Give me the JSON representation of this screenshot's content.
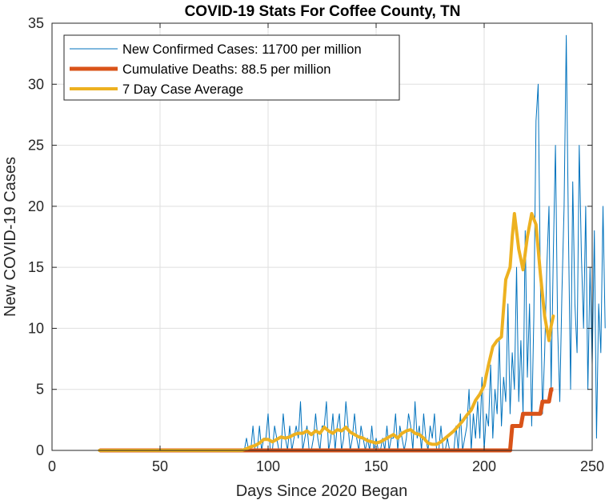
{
  "chart_data": {
    "type": "line",
    "title": "COVID-19 Stats For Coffee County, TN",
    "xlabel": "Days Since 2020 Began",
    "ylabel": "New COVID-19 Cases",
    "xlim": [
      0,
      250
    ],
    "ylim": [
      0,
      35
    ],
    "xticks": [
      0,
      50,
      100,
      150,
      200,
      250
    ],
    "yticks": [
      0,
      5,
      10,
      15,
      20,
      25,
      30,
      35
    ],
    "grid": true,
    "legend_position": "top-left",
    "series": [
      {
        "name": "New Confirmed Cases: 11700 per million",
        "color": "#0072BD",
        "x_start": 88,
        "values": [
          0,
          0,
          1,
          0,
          0,
          2,
          0,
          0,
          2,
          0,
          1,
          1,
          3,
          0,
          0,
          2,
          1,
          0,
          0,
          3,
          1,
          0,
          2,
          0,
          1,
          2,
          1,
          4,
          0,
          1,
          2,
          0,
          0,
          1,
          3,
          1,
          0,
          2,
          2,
          4,
          0,
          1,
          3,
          0,
          2,
          3,
          0,
          1,
          4,
          2,
          0,
          1,
          3,
          1,
          0,
          2,
          1,
          0,
          1,
          0,
          2,
          0,
          1,
          0,
          0,
          1,
          0,
          2,
          0,
          1,
          1,
          3,
          0,
          2,
          1,
          0,
          1,
          3,
          2,
          0,
          4,
          1,
          2,
          0,
          3,
          1,
          0,
          2,
          1,
          3,
          0,
          0,
          2,
          0,
          0,
          1,
          0,
          0,
          0,
          2,
          0,
          3,
          0,
          1,
          2,
          5,
          0,
          3,
          1,
          4,
          1,
          6,
          0,
          3,
          2,
          7,
          1,
          5,
          3,
          9,
          2,
          6,
          4,
          12,
          3,
          8,
          5,
          15,
          4,
          9,
          3,
          18,
          6,
          12,
          2,
          11,
          27,
          30,
          14,
          3,
          8,
          15,
          20,
          5,
          16,
          25,
          10,
          4,
          13,
          20,
          34,
          18,
          5,
          22,
          12,
          8,
          25,
          16,
          10,
          20,
          5,
          15,
          7,
          18,
          1,
          12,
          8,
          20,
          10
        ],
        "line_width": 1
      },
      {
        "name": "Cumulative Deaths: 88.5 per million",
        "color": "#D95319",
        "steps": [
          [
            22,
            0
          ],
          [
            212,
            0
          ],
          [
            213,
            2
          ],
          [
            217,
            2
          ],
          [
            218,
            3
          ],
          [
            226,
            3
          ],
          [
            227,
            4
          ],
          [
            230,
            4
          ],
          [
            231,
            5
          ],
          [
            232,
            5
          ]
        ],
        "line_width": 5
      },
      {
        "name": "7 Day Case Average",
        "color": "#EDB120",
        "points": [
          [
            22,
            0
          ],
          [
            88,
            0
          ],
          [
            90,
            0.14
          ],
          [
            92,
            0.3
          ],
          [
            94,
            0.4
          ],
          [
            96,
            0.6
          ],
          [
            98,
            0.9
          ],
          [
            100,
            0.9
          ],
          [
            102,
            0.7
          ],
          [
            104,
            0.9
          ],
          [
            106,
            1.1
          ],
          [
            108,
            1.0
          ],
          [
            110,
            1.1
          ],
          [
            112,
            1.3
          ],
          [
            114,
            1.4
          ],
          [
            116,
            1.4
          ],
          [
            118,
            1.6
          ],
          [
            120,
            1.3
          ],
          [
            122,
            1.6
          ],
          [
            124,
            1.4
          ],
          [
            126,
            1.9
          ],
          [
            128,
            1.6
          ],
          [
            130,
            1.4
          ],
          [
            132,
            1.7
          ],
          [
            134,
            1.6
          ],
          [
            136,
            1.9
          ],
          [
            138,
            1.5
          ],
          [
            140,
            1.3
          ],
          [
            142,
            1.1
          ],
          [
            144,
            1.0
          ],
          [
            146,
            0.8
          ],
          [
            148,
            0.7
          ],
          [
            150,
            0.6
          ],
          [
            152,
            0.7
          ],
          [
            154,
            0.9
          ],
          [
            156,
            1.1
          ],
          [
            158,
            1.3
          ],
          [
            160,
            1.0
          ],
          [
            162,
            1.4
          ],
          [
            164,
            1.6
          ],
          [
            166,
            1.7
          ],
          [
            168,
            1.4
          ],
          [
            170,
            1.3
          ],
          [
            172,
            1.0
          ],
          [
            174,
            0.6
          ],
          [
            176,
            0.5
          ],
          [
            178,
            0.5
          ],
          [
            180,
            0.7
          ],
          [
            182,
            1.0
          ],
          [
            184,
            1.3
          ],
          [
            186,
            1.6
          ],
          [
            188,
            2.0
          ],
          [
            190,
            2.4
          ],
          [
            192,
            2.9
          ],
          [
            194,
            3.3
          ],
          [
            196,
            4.1
          ],
          [
            198,
            4.6
          ],
          [
            200,
            5.3
          ],
          [
            202,
            7.0
          ],
          [
            204,
            8.5
          ],
          [
            206,
            9.0
          ],
          [
            208,
            9.3
          ],
          [
            210,
            14.0
          ],
          [
            212,
            15.0
          ],
          [
            213,
            17.5
          ],
          [
            214,
            19.4
          ],
          [
            216,
            16.5
          ],
          [
            218,
            14.8
          ],
          [
            220,
            17.5
          ],
          [
            222,
            19.4
          ],
          [
            224,
            18.5
          ],
          [
            226,
            14.5
          ],
          [
            228,
            11.0
          ],
          [
            230,
            9.0
          ],
          [
            231,
            10.2
          ],
          [
            232,
            11.0
          ]
        ],
        "line_width": 4
      }
    ]
  }
}
